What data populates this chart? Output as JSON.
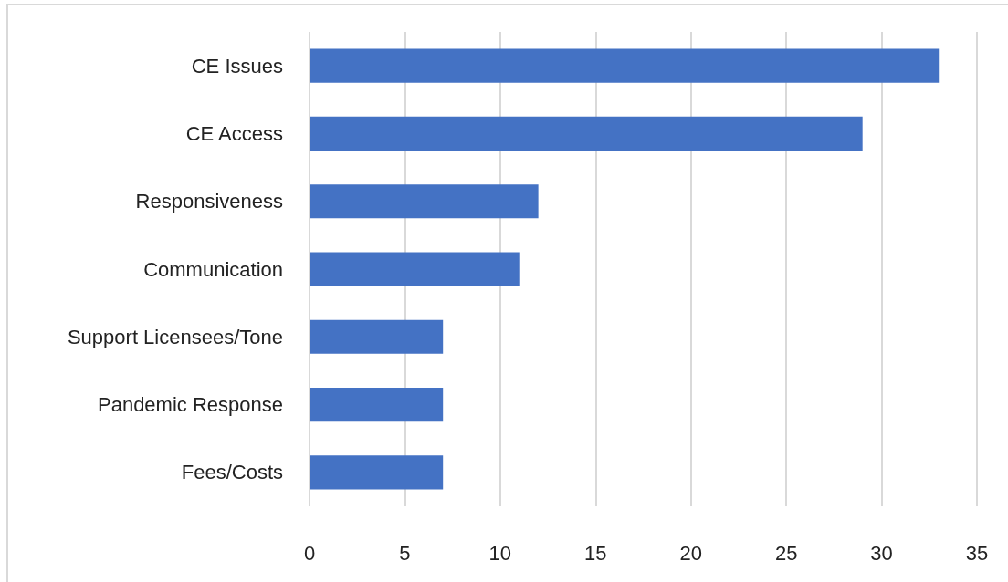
{
  "chart_data": {
    "type": "bar",
    "orientation": "horizontal",
    "categories": [
      "CE Issues",
      "CE Access",
      "Responsiveness",
      "Communication",
      "Support Licensees/Tone",
      "Pandemic Response",
      "Fees/Costs"
    ],
    "values": [
      33,
      29,
      12,
      11,
      7,
      7,
      7
    ],
    "color": "#4472c4",
    "xlim": [
      0,
      35
    ],
    "xticks": [
      0,
      5,
      10,
      15,
      20,
      25,
      30,
      35
    ],
    "grid": "x"
  }
}
